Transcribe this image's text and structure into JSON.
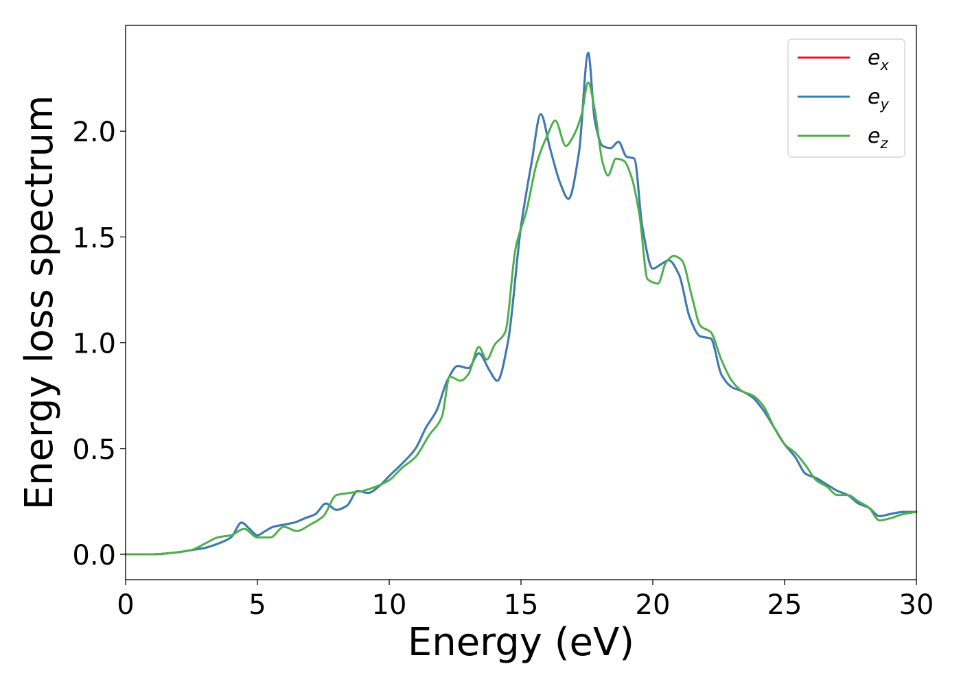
{
  "chart_data": {
    "type": "line",
    "xlabel": "Energy (eV)",
    "ylabel": "Energy loss spectrum",
    "xlim": [
      0,
      30
    ],
    "ylim": [
      -0.12,
      2.5
    ],
    "x_ticks": [
      0,
      5,
      10,
      15,
      20,
      25,
      30
    ],
    "y_ticks": [
      0.0,
      0.5,
      1.0,
      1.5,
      2.0
    ],
    "x_tick_labels": [
      "0",
      "5",
      "10",
      "15",
      "20",
      "25",
      "30"
    ],
    "y_tick_labels": [
      "0.0",
      "0.5",
      "1.0",
      "1.5",
      "2.0"
    ],
    "grid": false,
    "legend_position": "top-right",
    "series": [
      {
        "name": "e_x",
        "label_base": "e",
        "label_sub": "x",
        "color": "#e41a1c",
        "x": [
          0,
          1,
          2,
          2.5,
          3,
          3.5,
          4,
          4.4,
          4.7,
          5,
          5.3,
          5.6,
          6,
          6.4,
          6.8,
          7.2,
          7.6,
          8,
          8.4,
          8.8,
          9.2,
          9.6,
          10,
          10.5,
          11,
          11.4,
          11.8,
          12.2,
          12.6,
          13,
          13.4,
          13.8,
          14.1,
          14.5,
          15,
          15.4,
          15.75,
          16.1,
          16.5,
          16.8,
          17.2,
          17.55,
          17.8,
          18.1,
          18.4,
          18.7,
          19,
          19.3,
          19.6,
          20,
          20.3,
          20.6,
          21,
          21.4,
          21.8,
          22.2,
          22.6,
          23,
          23.4,
          23.8,
          24.2,
          24.6,
          25,
          25.4,
          25.8,
          26.2,
          26.6,
          27,
          27.4,
          27.8,
          28.2,
          28.6,
          29,
          29.5,
          30
        ],
        "values": [
          0,
          0,
          0.01,
          0.02,
          0.03,
          0.05,
          0.08,
          0.15,
          0.12,
          0.09,
          0.11,
          0.13,
          0.14,
          0.15,
          0.17,
          0.19,
          0.24,
          0.21,
          0.23,
          0.3,
          0.29,
          0.32,
          0.37,
          0.43,
          0.5,
          0.6,
          0.68,
          0.82,
          0.89,
          0.88,
          0.95,
          0.87,
          0.82,
          1.0,
          1.55,
          1.85,
          2.08,
          1.92,
          1.75,
          1.68,
          1.9,
          2.37,
          2.05,
          1.93,
          1.92,
          1.95,
          1.88,
          1.87,
          1.55,
          1.35,
          1.37,
          1.39,
          1.32,
          1.12,
          1.03,
          1.02,
          0.85,
          0.79,
          0.77,
          0.74,
          0.68,
          0.6,
          0.52,
          0.46,
          0.38,
          0.36,
          0.33,
          0.3,
          0.28,
          0.24,
          0.22,
          0.18,
          0.19,
          0.2,
          0.2
        ]
      },
      {
        "name": "e_y",
        "label_base": "e",
        "label_sub": "y",
        "color": "#377eb8",
        "x": [
          0,
          1,
          2,
          2.5,
          3,
          3.5,
          4,
          4.4,
          4.7,
          5,
          5.3,
          5.6,
          6,
          6.4,
          6.8,
          7.2,
          7.6,
          8,
          8.4,
          8.8,
          9.2,
          9.6,
          10,
          10.5,
          11,
          11.4,
          11.8,
          12.2,
          12.6,
          13,
          13.4,
          13.8,
          14.1,
          14.5,
          15,
          15.4,
          15.75,
          16.1,
          16.5,
          16.8,
          17.2,
          17.55,
          17.8,
          18.1,
          18.4,
          18.7,
          19,
          19.3,
          19.6,
          20,
          20.3,
          20.6,
          21,
          21.4,
          21.8,
          22.2,
          22.6,
          23,
          23.4,
          23.8,
          24.2,
          24.6,
          25,
          25.4,
          25.8,
          26.2,
          26.6,
          27,
          27.4,
          27.8,
          28.2,
          28.6,
          29,
          29.5,
          30
        ],
        "values": [
          0,
          0,
          0.01,
          0.02,
          0.03,
          0.05,
          0.08,
          0.15,
          0.12,
          0.09,
          0.11,
          0.13,
          0.14,
          0.15,
          0.17,
          0.19,
          0.24,
          0.21,
          0.23,
          0.3,
          0.29,
          0.32,
          0.37,
          0.43,
          0.5,
          0.6,
          0.68,
          0.82,
          0.89,
          0.88,
          0.95,
          0.87,
          0.82,
          1.0,
          1.55,
          1.85,
          2.08,
          1.92,
          1.75,
          1.68,
          1.9,
          2.37,
          2.05,
          1.93,
          1.92,
          1.95,
          1.88,
          1.87,
          1.55,
          1.35,
          1.37,
          1.39,
          1.32,
          1.12,
          1.03,
          1.02,
          0.85,
          0.79,
          0.77,
          0.74,
          0.68,
          0.6,
          0.52,
          0.46,
          0.38,
          0.36,
          0.33,
          0.3,
          0.28,
          0.24,
          0.22,
          0.18,
          0.19,
          0.2,
          0.2
        ]
      },
      {
        "name": "e_z",
        "label_base": "e",
        "label_sub": "z",
        "color": "#4daf4a",
        "x": [
          0,
          1,
          2,
          2.5,
          3,
          3.5,
          4,
          4.5,
          5,
          5.5,
          6,
          6.5,
          7,
          7.5,
          8,
          8.5,
          9,
          9.5,
          10,
          10.5,
          11,
          11.5,
          12,
          12.3,
          12.7,
          13,
          13.4,
          13.7,
          14,
          14.4,
          14.8,
          15.2,
          15.6,
          16,
          16.3,
          16.7,
          17,
          17.3,
          17.55,
          17.8,
          18.1,
          18.3,
          18.6,
          18.9,
          19.2,
          19.5,
          19.8,
          20.2,
          20.5,
          20.8,
          21.1,
          21.5,
          21.8,
          22.2,
          22.6,
          23,
          23.4,
          23.8,
          24.2,
          24.6,
          25,
          25.4,
          25.8,
          26.2,
          26.6,
          27,
          27.4,
          27.8,
          28.2,
          28.6,
          29,
          29.5,
          30
        ],
        "values": [
          0,
          0,
          0.01,
          0.02,
          0.05,
          0.08,
          0.09,
          0.12,
          0.08,
          0.08,
          0.13,
          0.11,
          0.14,
          0.18,
          0.28,
          0.29,
          0.3,
          0.32,
          0.35,
          0.41,
          0.46,
          0.56,
          0.65,
          0.84,
          0.82,
          0.85,
          0.98,
          0.92,
          0.99,
          1.05,
          1.45,
          1.62,
          1.85,
          1.98,
          2.05,
          1.93,
          1.98,
          2.08,
          2.23,
          2.1,
          1.85,
          1.79,
          1.87,
          1.86,
          1.78,
          1.6,
          1.3,
          1.28,
          1.38,
          1.41,
          1.39,
          1.21,
          1.08,
          1.05,
          0.92,
          0.82,
          0.77,
          0.75,
          0.7,
          0.6,
          0.52,
          0.48,
          0.42,
          0.35,
          0.32,
          0.28,
          0.28,
          0.25,
          0.22,
          0.16,
          0.17,
          0.19,
          0.2
        ]
      }
    ]
  }
}
